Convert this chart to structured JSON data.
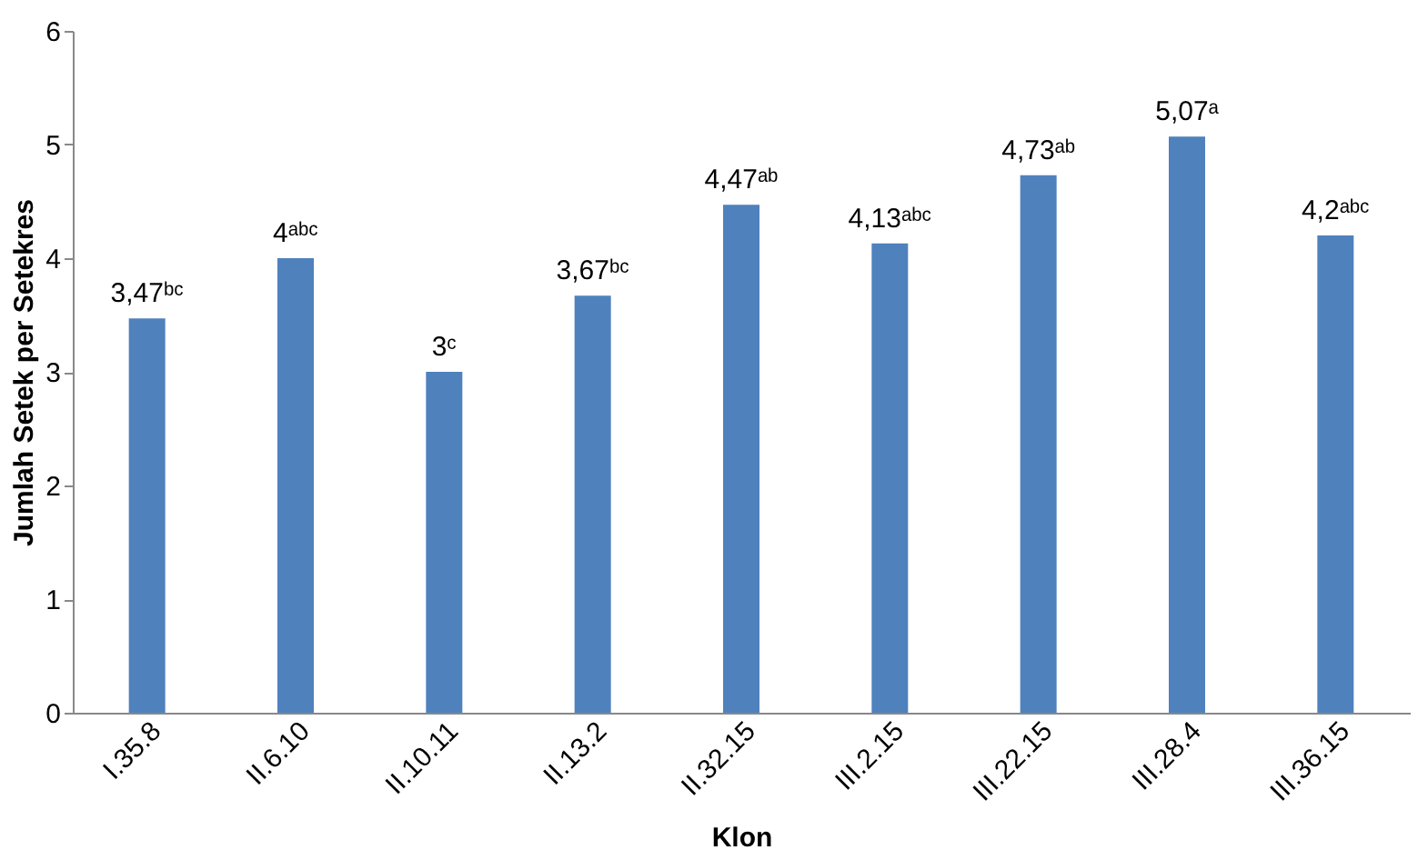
{
  "chart_data": {
    "type": "bar",
    "xlabel": "Klon",
    "ylabel": "Jumlah Setek per Setekres",
    "categories": [
      "I.35.8",
      "II.6.10",
      "II.10.11",
      "II.13.2",
      "II.32.15",
      "III.2.15",
      "III.22.15",
      "III.28.4",
      "III.36.15"
    ],
    "values": [
      3.47,
      4,
      3,
      3.67,
      4.47,
      4.13,
      4.73,
      5.07,
      4.2
    ],
    "value_labels": [
      "3,47ᵇᶜ",
      "4ᵃᵇᶜ",
      "3ᶜ",
      "3,67ᵇᶜ",
      "4,47ᵃᵇ",
      "4,13ᵃᵇᶜ",
      "4,73ᵃᵇ",
      "5,07ᵃ",
      "4,2ᵃᵇᶜ"
    ],
    "color": "#4f81bd",
    "ylim": [
      0,
      6
    ],
    "yticks": [
      0,
      1,
      2,
      3,
      4,
      5,
      6
    ],
    "grid": false
  }
}
